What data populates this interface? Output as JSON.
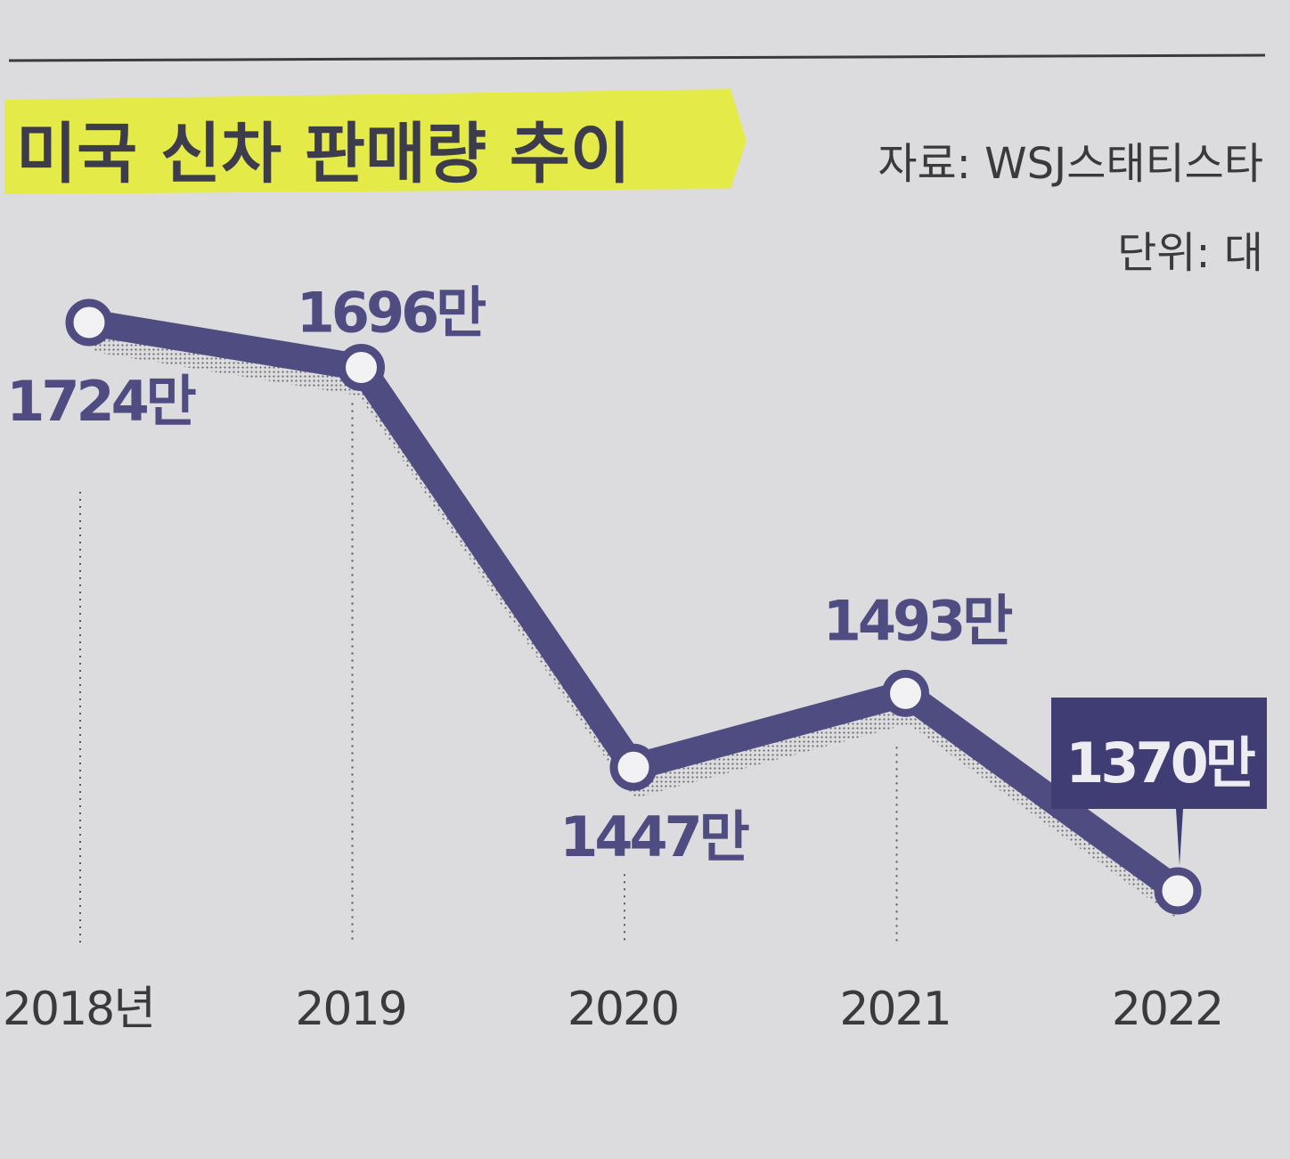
{
  "colors": {
    "line": "#4f4c82",
    "highlight": "#e4ea48",
    "label_text": "#4f4c82",
    "axis_text": "#3a3a3c",
    "paper": "#dcdcdf",
    "callout_bg": "#3f3d73",
    "callout_text": "#ececf2"
  },
  "chart_data": {
    "type": "line",
    "title": "미국 신차 판매량 추이",
    "source": "자료: WSJ스태티스타",
    "unit": "단위: 대",
    "categories": [
      "2018년",
      "2019",
      "2020",
      "2021",
      "2022"
    ],
    "values": [
      17240000,
      16960000,
      14470000,
      14930000,
      13700000
    ],
    "data_labels": [
      "1724만",
      "1696만",
      "1447만",
      "1493만",
      "1370만"
    ],
    "highlight_index": 4,
    "grid": false,
    "ylim": [
      13700000,
      17240000
    ]
  }
}
